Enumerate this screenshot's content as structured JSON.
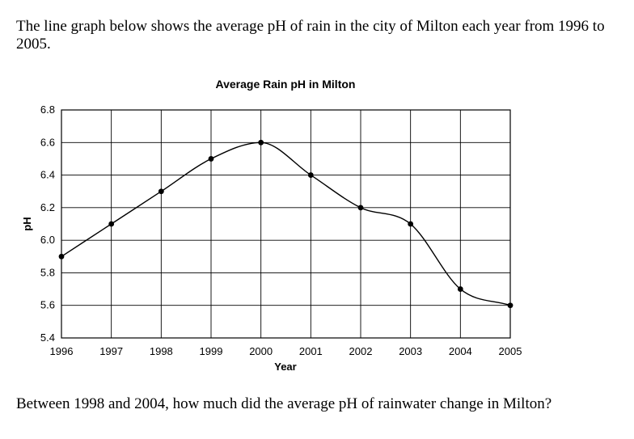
{
  "intro_text": "The line graph below shows the average pH of rain in the city of Milton each year from 1996 to 2005.",
  "question_text": "Between 1998 and 2004, how much did the average pH of rainwater change in Milton?",
  "chart_data": {
    "type": "line",
    "title": "Average Rain pH in Milton",
    "xlabel": "Year",
    "ylabel": "pH",
    "x": [
      "1996",
      "1997",
      "1998",
      "1999",
      "2000",
      "2001",
      "2002",
      "2003",
      "2004",
      "2005"
    ],
    "y": [
      5.9,
      6.1,
      6.3,
      6.5,
      6.6,
      6.4,
      6.2,
      6.1,
      5.7,
      5.6
    ],
    "yticks": [
      "5.4",
      "5.6",
      "5.8",
      "6.0",
      "6.2",
      "6.4",
      "6.6",
      "6.8"
    ],
    "ylim": [
      5.4,
      6.8
    ],
    "grid": true,
    "smooth": true
  }
}
